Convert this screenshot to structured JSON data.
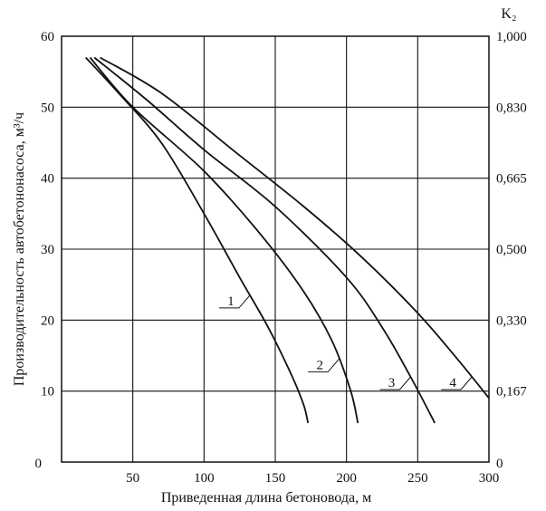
{
  "chart_data": {
    "type": "line",
    "title": "",
    "xlabel": "Приведенная длина бетоновода, м",
    "ylabel": "Производительность автобетононасоса, м³/ч",
    "y2label": "K₂",
    "xlim": [
      0,
      300
    ],
    "ylim": [
      0,
      60
    ],
    "x_ticks": [
      "50",
      "100",
      "150",
      "200",
      "250",
      "300"
    ],
    "x_zero_label": "0",
    "y_ticks": [
      "0",
      "10",
      "20",
      "30",
      "40",
      "50",
      "60"
    ],
    "y2_ticks": [
      "0",
      "0,167",
      "0,330",
      "0,500",
      "0,665",
      "0,830",
      "1,000"
    ],
    "grid": true,
    "series": [
      {
        "name": "1",
        "points": [
          [
            17,
            57
          ],
          [
            40,
            52
          ],
          [
            70,
            45
          ],
          [
            100,
            35
          ],
          [
            125,
            26
          ],
          [
            145,
            19
          ],
          [
            162,
            12
          ],
          [
            170,
            8
          ],
          [
            173,
            5.5
          ]
        ]
      },
      {
        "name": "2",
        "points": [
          [
            20,
            57
          ],
          [
            50,
            50
          ],
          [
            100,
            41
          ],
          [
            140,
            32
          ],
          [
            170,
            24
          ],
          [
            190,
            17
          ],
          [
            203,
            10
          ],
          [
            208,
            5.5
          ]
        ]
      },
      {
        "name": "3",
        "points": [
          [
            23,
            57
          ],
          [
            60,
            51
          ],
          [
            100,
            44
          ],
          [
            150,
            36
          ],
          [
            200,
            26
          ],
          [
            225,
            19
          ],
          [
            245,
            12
          ],
          [
            262,
            5.5
          ]
        ]
      },
      {
        "name": "4",
        "points": [
          [
            27,
            57
          ],
          [
            70,
            52
          ],
          [
            120,
            44
          ],
          [
            170,
            36
          ],
          [
            210,
            29
          ],
          [
            250,
            21
          ],
          [
            280,
            14
          ],
          [
            300,
            9
          ]
        ]
      }
    ]
  }
}
